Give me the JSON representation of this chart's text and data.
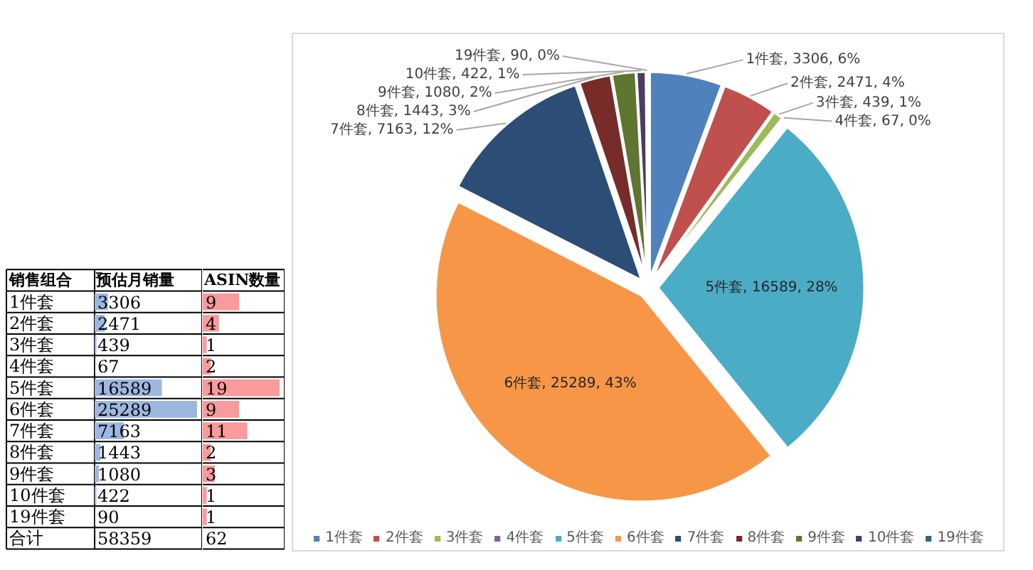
{
  "chart_data": [
    {
      "type": "bar",
      "orientation": "horizontal",
      "ylabel": "销售组合",
      "title": "预估月销量",
      "categories": [
        "1件套",
        "2件套",
        "3件套",
        "4件套",
        "5件套",
        "6件套",
        "7件套",
        "8件套",
        "9件套",
        "10件套",
        "19件套"
      ],
      "values": [
        3306,
        2471,
        439,
        67,
        16589,
        25289,
        7163,
        1443,
        1080,
        422,
        90
      ],
      "color": "#9db7e0",
      "data_labels": true,
      "tick_labels": "y",
      "annotations": [
        "合计",
        "58359"
      ]
    },
    {
      "type": "bar",
      "orientation": "horizontal",
      "title": "ASIN数量",
      "categories": [
        null,
        null,
        null,
        null,
        null,
        null,
        null,
        null,
        null,
        null,
        null
      ],
      "values": [
        9,
        4,
        1,
        2,
        19,
        9,
        11,
        2,
        3,
        1,
        1
      ],
      "color": "#f99a9c",
      "data_labels": true,
      "tick_labels": false,
      "annotations": [
        "62"
      ]
    },
    {
      "type": "pie",
      "categories": [
        "1件套",
        "2件套",
        "3件套",
        "4件套",
        "5件套",
        "6件套",
        "7件套",
        "8件套",
        "9件套",
        "10件套",
        "19件套"
      ],
      "values": [
        3306,
        2471,
        439,
        67,
        16589,
        25289,
        7163,
        1443,
        1080,
        422,
        90
      ],
      "colors": [
        "#4f81bd",
        "#c0504d",
        "#9bbb59",
        "#8064a2",
        "#4bacc6",
        "#f79646",
        "#2c4d75",
        "#772c2a",
        "#5f7530",
        "#4d3b62",
        "#276a7c"
      ],
      "value_labels": [
        "1件套, 3306, 6%",
        "2件套, 2471, 4%",
        "3件套, 439, 1%",
        "4件套, 67, 0%",
        "5件套, 16589, 28%",
        "6件套, 25289, 43%",
        "7件套, 7163, 12%",
        "8件套, 1443, 3%",
        "9件套, 1080, 2%",
        "10件套, 422, 1%",
        "19件套, 90, 0%"
      ],
      "legend": "bottom"
    }
  ]
}
